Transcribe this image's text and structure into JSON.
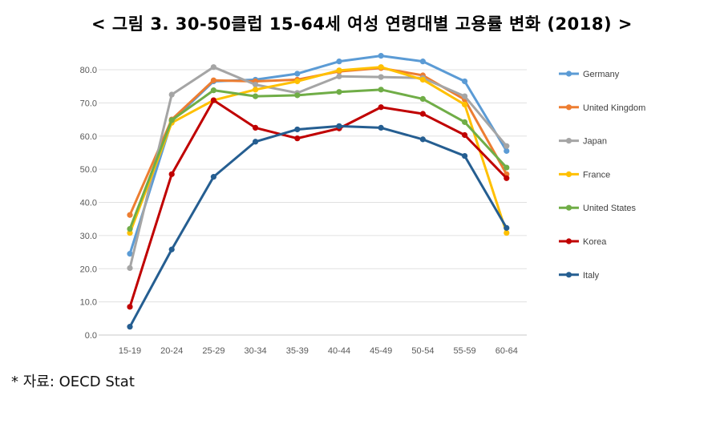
{
  "page": {
    "title": "< 그림 3. 30-50클럽 15-64세 여성 연령대별 고용률 변화 (2018) >",
    "source": "* 자료: OECD Stat"
  },
  "chart_data": {
    "type": "line",
    "title": "",
    "xlabel": "",
    "ylabel": "",
    "ylim": [
      0,
      80
    ],
    "yticks": [
      "0.0",
      "10.0",
      "20.0",
      "30.0",
      "40.0",
      "50.0",
      "60.0",
      "70.0",
      "80.0"
    ],
    "grid": true,
    "legend_position": "right",
    "categories": [
      "15-19",
      "20-24",
      "25-29",
      "30-34",
      "35-39",
      "40-44",
      "45-49",
      "50-54",
      "55-59",
      "60-64"
    ],
    "series": [
      {
        "name": "Germany",
        "color": "#5B9BD5",
        "values": [
          24.5,
          64.5,
          76.5,
          77.0,
          78.8,
          82.5,
          84.2,
          82.5,
          76.5,
          55.5
        ]
      },
      {
        "name": "United Kingdom",
        "color": "#ED7D31",
        "values": [
          36.2,
          65.0,
          76.8,
          76.5,
          77.0,
          79.5,
          80.5,
          78.3,
          71.0,
          48.5
        ]
      },
      {
        "name": "Japan",
        "color": "#A5A5A5",
        "values": [
          20.2,
          72.5,
          80.8,
          75.5,
          73.0,
          78.0,
          77.8,
          77.5,
          72.0,
          57.0
        ]
      },
      {
        "name": "France",
        "color": "#FFC000",
        "values": [
          30.8,
          64.0,
          70.8,
          74.0,
          76.5,
          79.8,
          80.8,
          77.0,
          69.5,
          30.8
        ]
      },
      {
        "name": "United States",
        "color": "#70AD47",
        "values": [
          32.0,
          64.8,
          73.8,
          72.0,
          72.3,
          73.3,
          74.0,
          71.2,
          64.2,
          50.5
        ]
      },
      {
        "name": "Korea",
        "color": "#C00000",
        "values": [
          8.5,
          48.5,
          70.8,
          62.5,
          59.3,
          62.3,
          68.7,
          66.7,
          60.3,
          47.3
        ]
      },
      {
        "name": "Italy",
        "color": "#255E91",
        "values": [
          2.5,
          25.8,
          47.7,
          58.3,
          62.0,
          63.0,
          62.5,
          59.0,
          54.0,
          32.3
        ]
      }
    ]
  }
}
